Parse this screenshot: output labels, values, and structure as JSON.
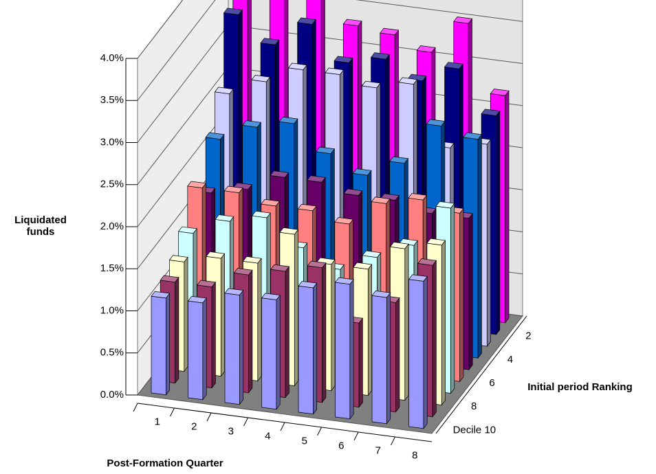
{
  "chart_data": {
    "type": "bar3d",
    "y_label": "Liquidated funds",
    "x_label": "Post-Formation Quarter",
    "depth_label": "Initial period Ranking",
    "categories": [
      "1",
      "2",
      "3",
      "4",
      "5",
      "6",
      "7",
      "8"
    ],
    "depth_categories": [
      null,
      "2",
      null,
      "4",
      null,
      "6",
      null,
      "8",
      null,
      "Decile 10"
    ],
    "ylim": [
      0,
      4
    ],
    "yticks": [
      {
        "value": 0,
        "label": "0.0%"
      },
      {
        "value": 0.5,
        "label": "0.5%"
      },
      {
        "value": 1,
        "label": "1.0%"
      },
      {
        "value": 1.5,
        "label": "1.5%"
      },
      {
        "value": 2,
        "label": "2.0%"
      },
      {
        "value": 2.5,
        "label": "2.5%"
      },
      {
        "value": 3,
        "label": "3.0%"
      },
      {
        "value": 3.5,
        "label": "3.5%"
      },
      {
        "value": 4,
        "label": "4.0%"
      }
    ],
    "grid": true,
    "series": [
      {
        "color": "#ff00ff",
        "values": [
          3.6,
          3.75,
          4.0,
          3.3,
          3.25,
          3.1,
          3.5,
          2.7
        ]
      },
      {
        "color": "#000080",
        "values": [
          3.4,
          3.1,
          3.4,
          3.0,
          3.1,
          2.9,
          3.1,
          2.6
        ]
      },
      {
        "color": "#ccccff",
        "values": [
          2.6,
          2.8,
          3.0,
          3.0,
          2.9,
          3.0,
          2.3,
          2.4
        ]
      },
      {
        "color": "#0066cc",
        "values": [
          2.2,
          2.4,
          2.5,
          2.2,
          2.0,
          2.2,
          2.7,
          2.6
        ]
      },
      {
        "color": "#660066",
        "values": [
          1.7,
          1.8,
          2.0,
          2.0,
          1.9,
          1.9,
          1.8,
          1.8
        ]
      },
      {
        "color": "#ff8080",
        "values": [
          1.9,
          1.9,
          1.8,
          1.8,
          1.7,
          2.0,
          2.1,
          2.0
        ]
      },
      {
        "color": "#ccffff",
        "values": [
          1.5,
          1.7,
          1.8,
          1.5,
          1.3,
          1.5,
          1.7,
          2.2
        ]
      },
      {
        "color": "#ffffcc",
        "values": [
          1.3,
          1.4,
          1.4,
          1.8,
          1.5,
          1.5,
          1.8,
          1.9
        ]
      },
      {
        "color": "#993366",
        "values": [
          1.2,
          1.2,
          1.4,
          1.5,
          1.6,
          1.0,
          1.3,
          1.8
        ]
      },
      {
        "color": "#9999ff",
        "values": [
          1.15,
          1.15,
          1.3,
          1.3,
          1.5,
          1.6,
          1.5,
          1.75
        ]
      }
    ]
  }
}
